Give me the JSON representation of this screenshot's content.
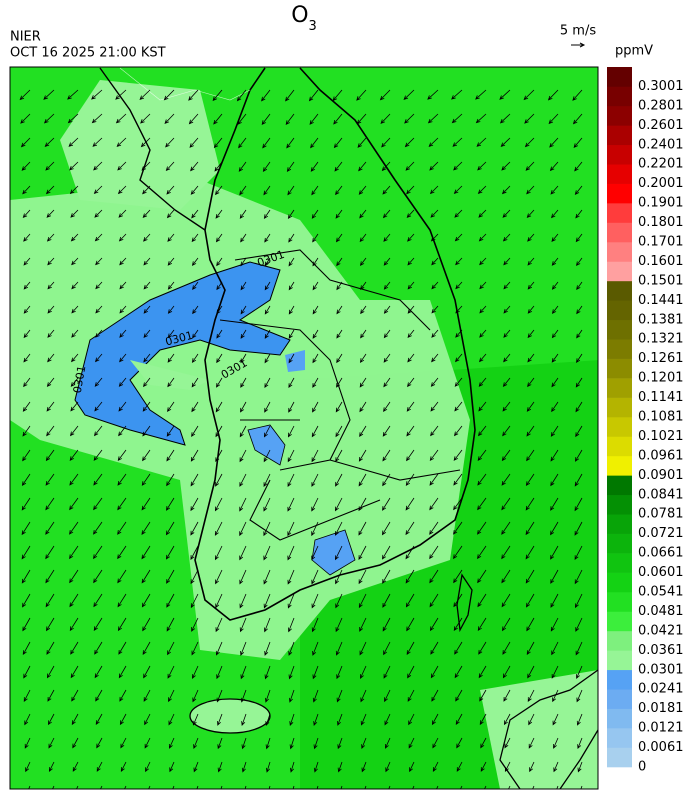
{
  "header": {
    "title": "O",
    "title_subscript": "3",
    "agency": "NIER",
    "datetime": "OCT 16 2025 21:00 KST",
    "wind_scale": "5 m/s"
  },
  "colorbar": {
    "unit": "ppmV",
    "levels": [
      0,
      0.0061,
      0.0121,
      0.0181,
      0.0241,
      0.0301,
      0.0361,
      0.0421,
      0.0481,
      0.0541,
      0.0601,
      0.0661,
      0.0721,
      0.0781,
      0.0841,
      0.0901,
      0.0961,
      0.1021,
      0.1081,
      0.1141,
      0.1201,
      0.1261,
      0.1321,
      0.1381,
      0.1441,
      0.1501,
      0.1601,
      0.1701,
      0.1801,
      0.1901,
      0.2001,
      0.2201,
      0.2401,
      0.2601,
      0.2801,
      0.3001
    ],
    "colors": [
      "#a8d0ee",
      "#96c6f0",
      "#80baf0",
      "#6cacf2",
      "#56a2f4",
      "#96f596",
      "#7ef07e",
      "#3cee3c",
      "#22e022",
      "#14d214",
      "#10c410",
      "#0cb40c",
      "#08a408",
      "#049004",
      "#007800",
      "#f0f000",
      "#dcdc00",
      "#c8c800",
      "#b4b400",
      "#a0a000",
      "#8c8c00",
      "#7c7c00",
      "#6e7000",
      "#646400",
      "#5a5a00",
      "#ffa0a0",
      "#ff8080",
      "#ff6060",
      "#ff3c3c",
      "#ff0000",
      "#e60000",
      "#c80000",
      "#aa0000",
      "#8c0000",
      "#780000",
      "#640000"
    ]
  },
  "contour_labels": [
    "0301",
    "0301",
    "0301",
    "0301"
  ]
}
